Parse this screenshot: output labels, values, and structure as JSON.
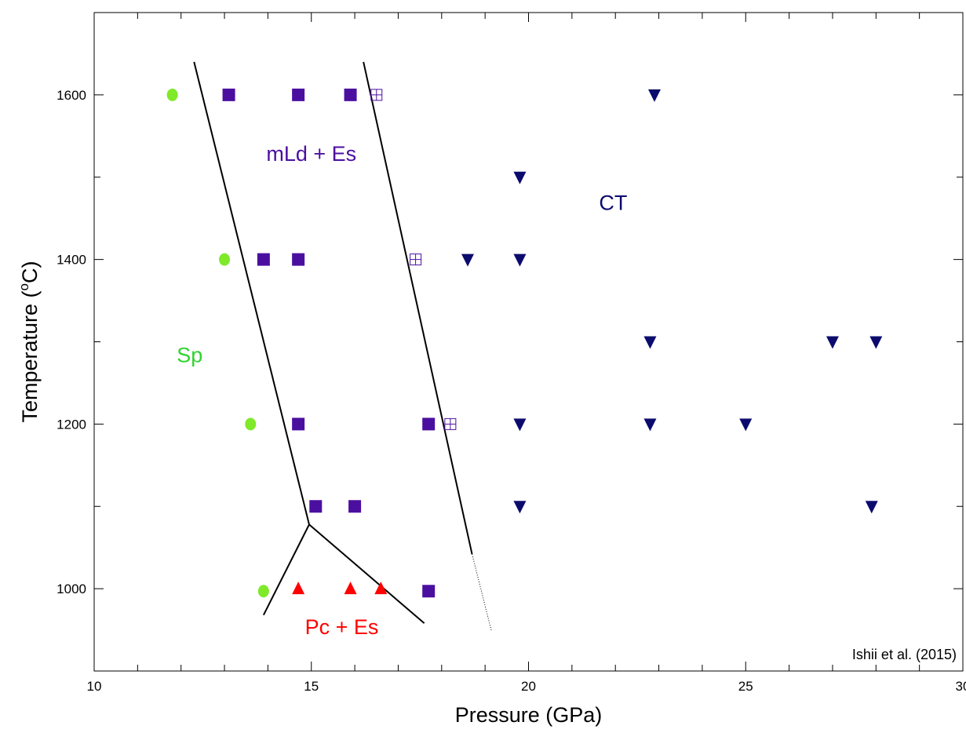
{
  "chart_data": {
    "type": "scatter",
    "xlabel": "Pressure (GPa)",
    "ylabel": {
      "main": "Temperature (",
      "sup": "o",
      "unit": "C)"
    },
    "xlim": [
      10,
      30
    ],
    "ylim": [
      900,
      1700
    ],
    "xticks": [
      10,
      15,
      20,
      25,
      30
    ],
    "yticks": [
      1000,
      1200,
      1400,
      1600
    ],
    "grid": false,
    "citation": "Ishii et al. (2015)",
    "colors": {
      "green": "#7fe92a",
      "purple": "#4b0fa0",
      "red": "#ff0000",
      "navy": "#0b0b6e"
    },
    "series": [
      {
        "marker": "circle",
        "color": "#7fe92a",
        "points": [
          [
            11.8,
            1600
          ],
          [
            13.0,
            1400
          ],
          [
            13.6,
            1200
          ],
          [
            13.9,
            997
          ]
        ]
      },
      {
        "marker": "square",
        "color": "#4b0fa0",
        "points": [
          [
            13.1,
            1600
          ],
          [
            14.7,
            1600
          ],
          [
            15.9,
            1600
          ],
          [
            13.9,
            1400
          ],
          [
            14.7,
            1400
          ],
          [
            14.7,
            1200
          ],
          [
            17.7,
            1200
          ],
          [
            15.1,
            1100
          ],
          [
            16.0,
            1100
          ],
          [
            17.7,
            997
          ]
        ]
      },
      {
        "marker": "square-crossed",
        "color": "#4b0fa0",
        "points": [
          [
            16.5,
            1600
          ],
          [
            17.4,
            1400
          ],
          [
            18.2,
            1200
          ]
        ]
      },
      {
        "marker": "triangle-up",
        "color": "#ff0000",
        "points": [
          [
            14.7,
            1000
          ],
          [
            15.9,
            1000
          ],
          [
            16.6,
            1000
          ]
        ]
      },
      {
        "marker": "triangle-down",
        "color": "#0b0b6e",
        "points": [
          [
            22.9,
            1600
          ],
          [
            19.8,
            1500
          ],
          [
            18.6,
            1400
          ],
          [
            19.8,
            1400
          ],
          [
            22.8,
            1300
          ],
          [
            27.0,
            1300
          ],
          [
            28.0,
            1300
          ],
          [
            19.8,
            1200
          ],
          [
            22.8,
            1200
          ],
          [
            25.0,
            1200
          ],
          [
            19.8,
            1100
          ],
          [
            27.9,
            1100
          ]
        ]
      }
    ],
    "boundaries": [
      {
        "style": "solid",
        "points": [
          [
            12.3,
            1640
          ],
          [
            14.95,
            1078
          ]
        ]
      },
      {
        "style": "solid",
        "points": [
          [
            14.95,
            1078
          ],
          [
            13.9,
            968
          ]
        ]
      },
      {
        "style": "solid",
        "points": [
          [
            14.95,
            1078
          ],
          [
            17.6,
            958
          ]
        ]
      },
      {
        "style": "solid",
        "points": [
          [
            16.2,
            1640
          ],
          [
            18.7,
            1042
          ]
        ]
      },
      {
        "style": "dotted",
        "points": [
          [
            18.7,
            1042
          ],
          [
            19.15,
            948
          ]
        ]
      }
    ],
    "annotations": [
      {
        "text": "mLd + Es",
        "x": 15.0,
        "y": 1520,
        "color": "#4b0fa0"
      },
      {
        "text": "CT",
        "x": 21.95,
        "y": 1460,
        "color": "#0b0b6e"
      },
      {
        "text": "Sp",
        "x": 12.2,
        "y": 1275,
        "color": "#2fd42f"
      },
      {
        "text": "Pc + Es",
        "x": 15.7,
        "y": 945,
        "color": "#ff0000"
      }
    ]
  }
}
